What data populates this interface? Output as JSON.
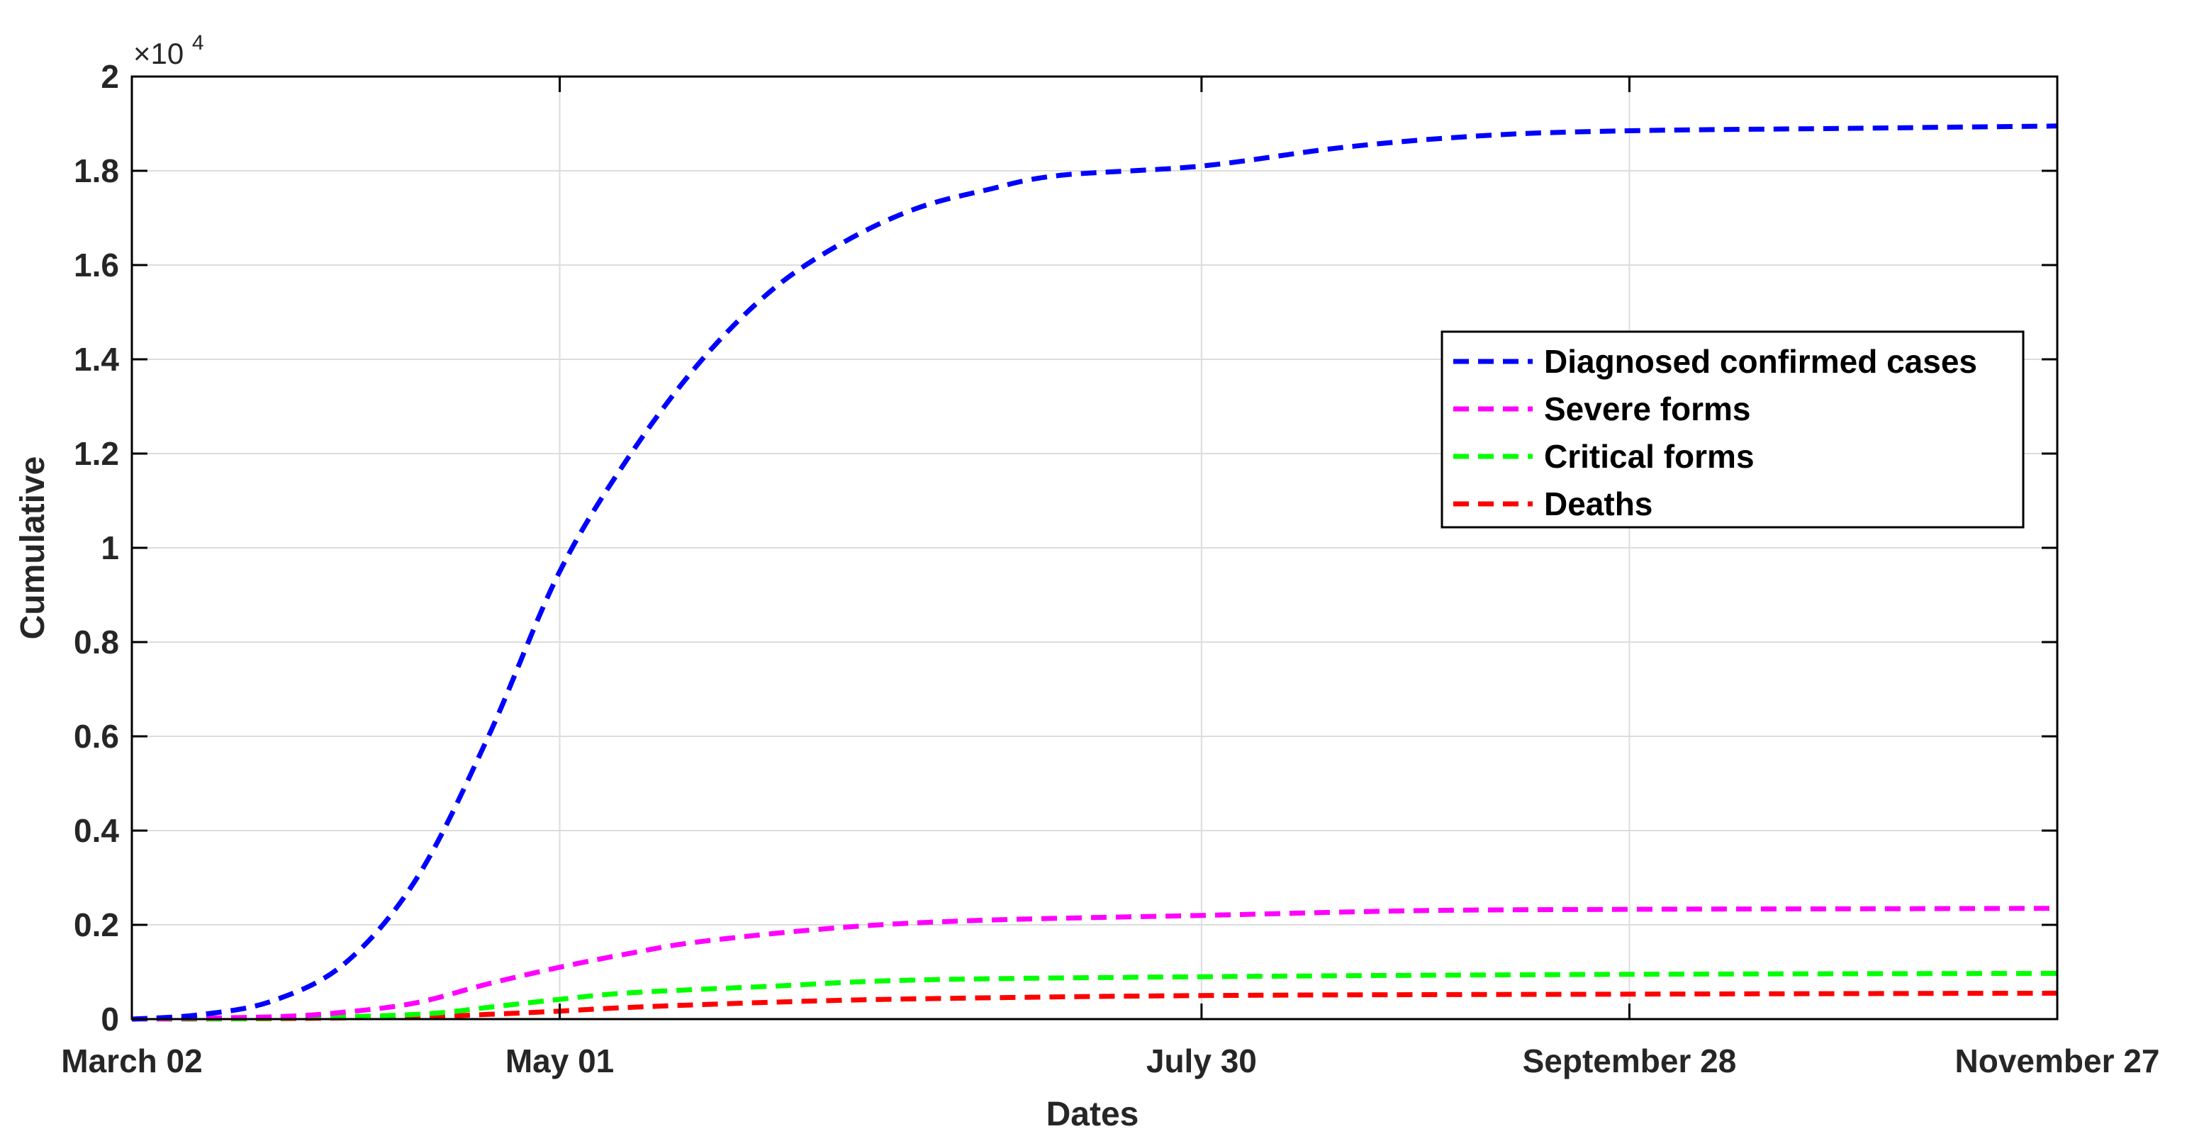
{
  "chart_data": {
    "type": "line",
    "title": "",
    "xlabel": "Dates",
    "ylabel": "Cumulative",
    "y_exponent": {
      "prefix": "×10",
      "power": "4"
    },
    "x_start": "March 02",
    "x_end": "November 27",
    "xticks": [
      {
        "label": "March 02",
        "value": "March 02"
      },
      {
        "label": "May 01",
        "value": "May 01"
      },
      {
        "label": "July 30",
        "value": "July 30"
      },
      {
        "label": "September 28",
        "value": "September 28"
      },
      {
        "label": "November 27",
        "value": "November 27"
      }
    ],
    "yticks": [
      {
        "label": "0",
        "value": 0
      },
      {
        "label": "0.2",
        "value": 2000
      },
      {
        "label": "0.4",
        "value": 4000
      },
      {
        "label": "0.6",
        "value": 6000
      },
      {
        "label": "0.8",
        "value": 8000
      },
      {
        "label": "1",
        "value": 10000
      },
      {
        "label": "1.2",
        "value": 12000
      },
      {
        "label": "1.4",
        "value": 14000
      },
      {
        "label": "1.6",
        "value": 16000
      },
      {
        "label": "1.8",
        "value": 18000
      },
      {
        "label": "2",
        "value": 20000
      }
    ],
    "ylim": [
      0,
      20000
    ],
    "grid": true,
    "legend_position": "upper-right",
    "series": [
      {
        "name": "Diagnosed confirmed cases",
        "color": "#0000ff",
        "points": [
          [
            "March 02",
            0
          ],
          [
            "March 12",
            100
          ],
          [
            "March 22",
            400
          ],
          [
            "April 01",
            1200
          ],
          [
            "April 11",
            3000
          ],
          [
            "April 21",
            6000
          ],
          [
            "May 01",
            9500
          ],
          [
            "May 11",
            12000
          ],
          [
            "May 21",
            14000
          ],
          [
            "May 31",
            15500
          ],
          [
            "June 10",
            16500
          ],
          [
            "June 20",
            17200
          ],
          [
            "June 30",
            17600
          ],
          [
            "July 10",
            17900
          ],
          [
            "July 30",
            18100
          ],
          [
            "August 19",
            18500
          ],
          [
            "September 08",
            18750
          ],
          [
            "September 28",
            18850
          ],
          [
            "October 28",
            18900
          ],
          [
            "November 27",
            18950
          ]
        ]
      },
      {
        "name": "Severe forms",
        "color": "#ff00ff",
        "points": [
          [
            "March 02",
            0
          ],
          [
            "March 22",
            50
          ],
          [
            "April 01",
            150
          ],
          [
            "April 11",
            350
          ],
          [
            "April 21",
            750
          ],
          [
            "May 01",
            1100
          ],
          [
            "May 11",
            1400
          ],
          [
            "May 21",
            1650
          ],
          [
            "June 10",
            1950
          ],
          [
            "June 30",
            2100
          ],
          [
            "July 30",
            2200
          ],
          [
            "August 29",
            2300
          ],
          [
            "September 28",
            2330
          ],
          [
            "October 28",
            2340
          ],
          [
            "November 27",
            2350
          ]
        ]
      },
      {
        "name": "Critical forms",
        "color": "#00ff00",
        "points": [
          [
            "March 02",
            0
          ],
          [
            "March 22",
            20
          ],
          [
            "April 11",
            100
          ],
          [
            "April 21",
            250
          ],
          [
            "May 01",
            420
          ],
          [
            "May 11",
            560
          ],
          [
            "May 31",
            700
          ],
          [
            "June 20",
            830
          ],
          [
            "July 30",
            900
          ],
          [
            "September 28",
            950
          ],
          [
            "November 27",
            970
          ]
        ]
      },
      {
        "name": "Deaths",
        "color": "#ff0000",
        "points": [
          [
            "March 02",
            0
          ],
          [
            "March 22",
            10
          ],
          [
            "April 11",
            50
          ],
          [
            "April 21",
            100
          ],
          [
            "May 01",
            170
          ],
          [
            "May 11",
            250
          ],
          [
            "May 31",
            360
          ],
          [
            "June 20",
            430
          ],
          [
            "July 30",
            500
          ],
          [
            "September 28",
            530
          ],
          [
            "November 27",
            550
          ]
        ]
      }
    ]
  }
}
